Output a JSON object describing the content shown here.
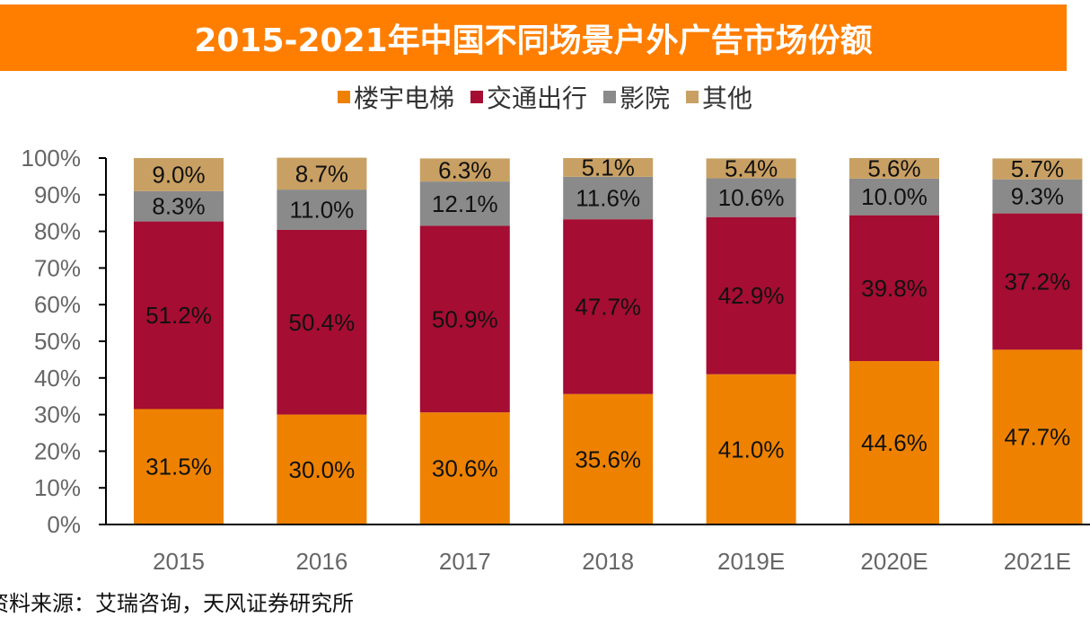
{
  "header": {
    "title": "2015-2021年中国不同场景户外广告市场份额"
  },
  "footer": {
    "source": "资料来源：艾瑞咨询，天风证券研究所"
  },
  "colors": {
    "title_bg": "#ff7e00",
    "building_elevator": "#ee8200",
    "transportation": "#a50d32",
    "cinema": "#8a8a8a",
    "other": "#c9a063"
  },
  "chart_data": {
    "type": "bar",
    "stacked": true,
    "title": "2015-2021年中国不同场景户外广告市场份额",
    "xlabel": "",
    "ylabel": "",
    "ylim": [
      0,
      100
    ],
    "yticks": [
      "0%",
      "10%",
      "20%",
      "30%",
      "40%",
      "50%",
      "60%",
      "70%",
      "80%",
      "90%",
      "100%"
    ],
    "legend_position": "top-center",
    "grid": false,
    "categories": [
      "2015",
      "2016",
      "2017",
      "2018",
      "2019E",
      "2020E",
      "2021E"
    ],
    "series": [
      {
        "name": "楼宇电梯",
        "color": "#ee8200",
        "values": [
          31.5,
          30.0,
          30.6,
          35.6,
          41.0,
          44.6,
          47.7
        ],
        "labels": [
          "31.5%",
          "30.0%",
          "30.6%",
          "35.6%",
          "41.0%",
          "44.6%",
          "47.7%"
        ]
      },
      {
        "name": "交通出行",
        "color": "#a50d32",
        "values": [
          51.2,
          50.4,
          50.9,
          47.7,
          42.9,
          39.8,
          37.2
        ],
        "labels": [
          "51.2%",
          "50.4%",
          "50.9%",
          "47.7%",
          "42.9%",
          "39.8%",
          "37.2%"
        ]
      },
      {
        "name": "影院",
        "color": "#8a8a8a",
        "values": [
          8.3,
          11.0,
          12.1,
          11.6,
          10.6,
          10.0,
          9.3
        ],
        "labels": [
          "8.3%",
          "11.0%",
          "12.1%",
          "11.6%",
          "10.6%",
          "10.0%",
          "9.3%"
        ]
      },
      {
        "name": "其他",
        "color": "#c9a063",
        "values": [
          9.0,
          8.7,
          6.3,
          5.1,
          5.4,
          5.6,
          5.7
        ],
        "labels": [
          "9.0%",
          "8.7%",
          "6.3%",
          "5.1%",
          "5.4%",
          "5.6%",
          "5.7%"
        ]
      }
    ]
  }
}
